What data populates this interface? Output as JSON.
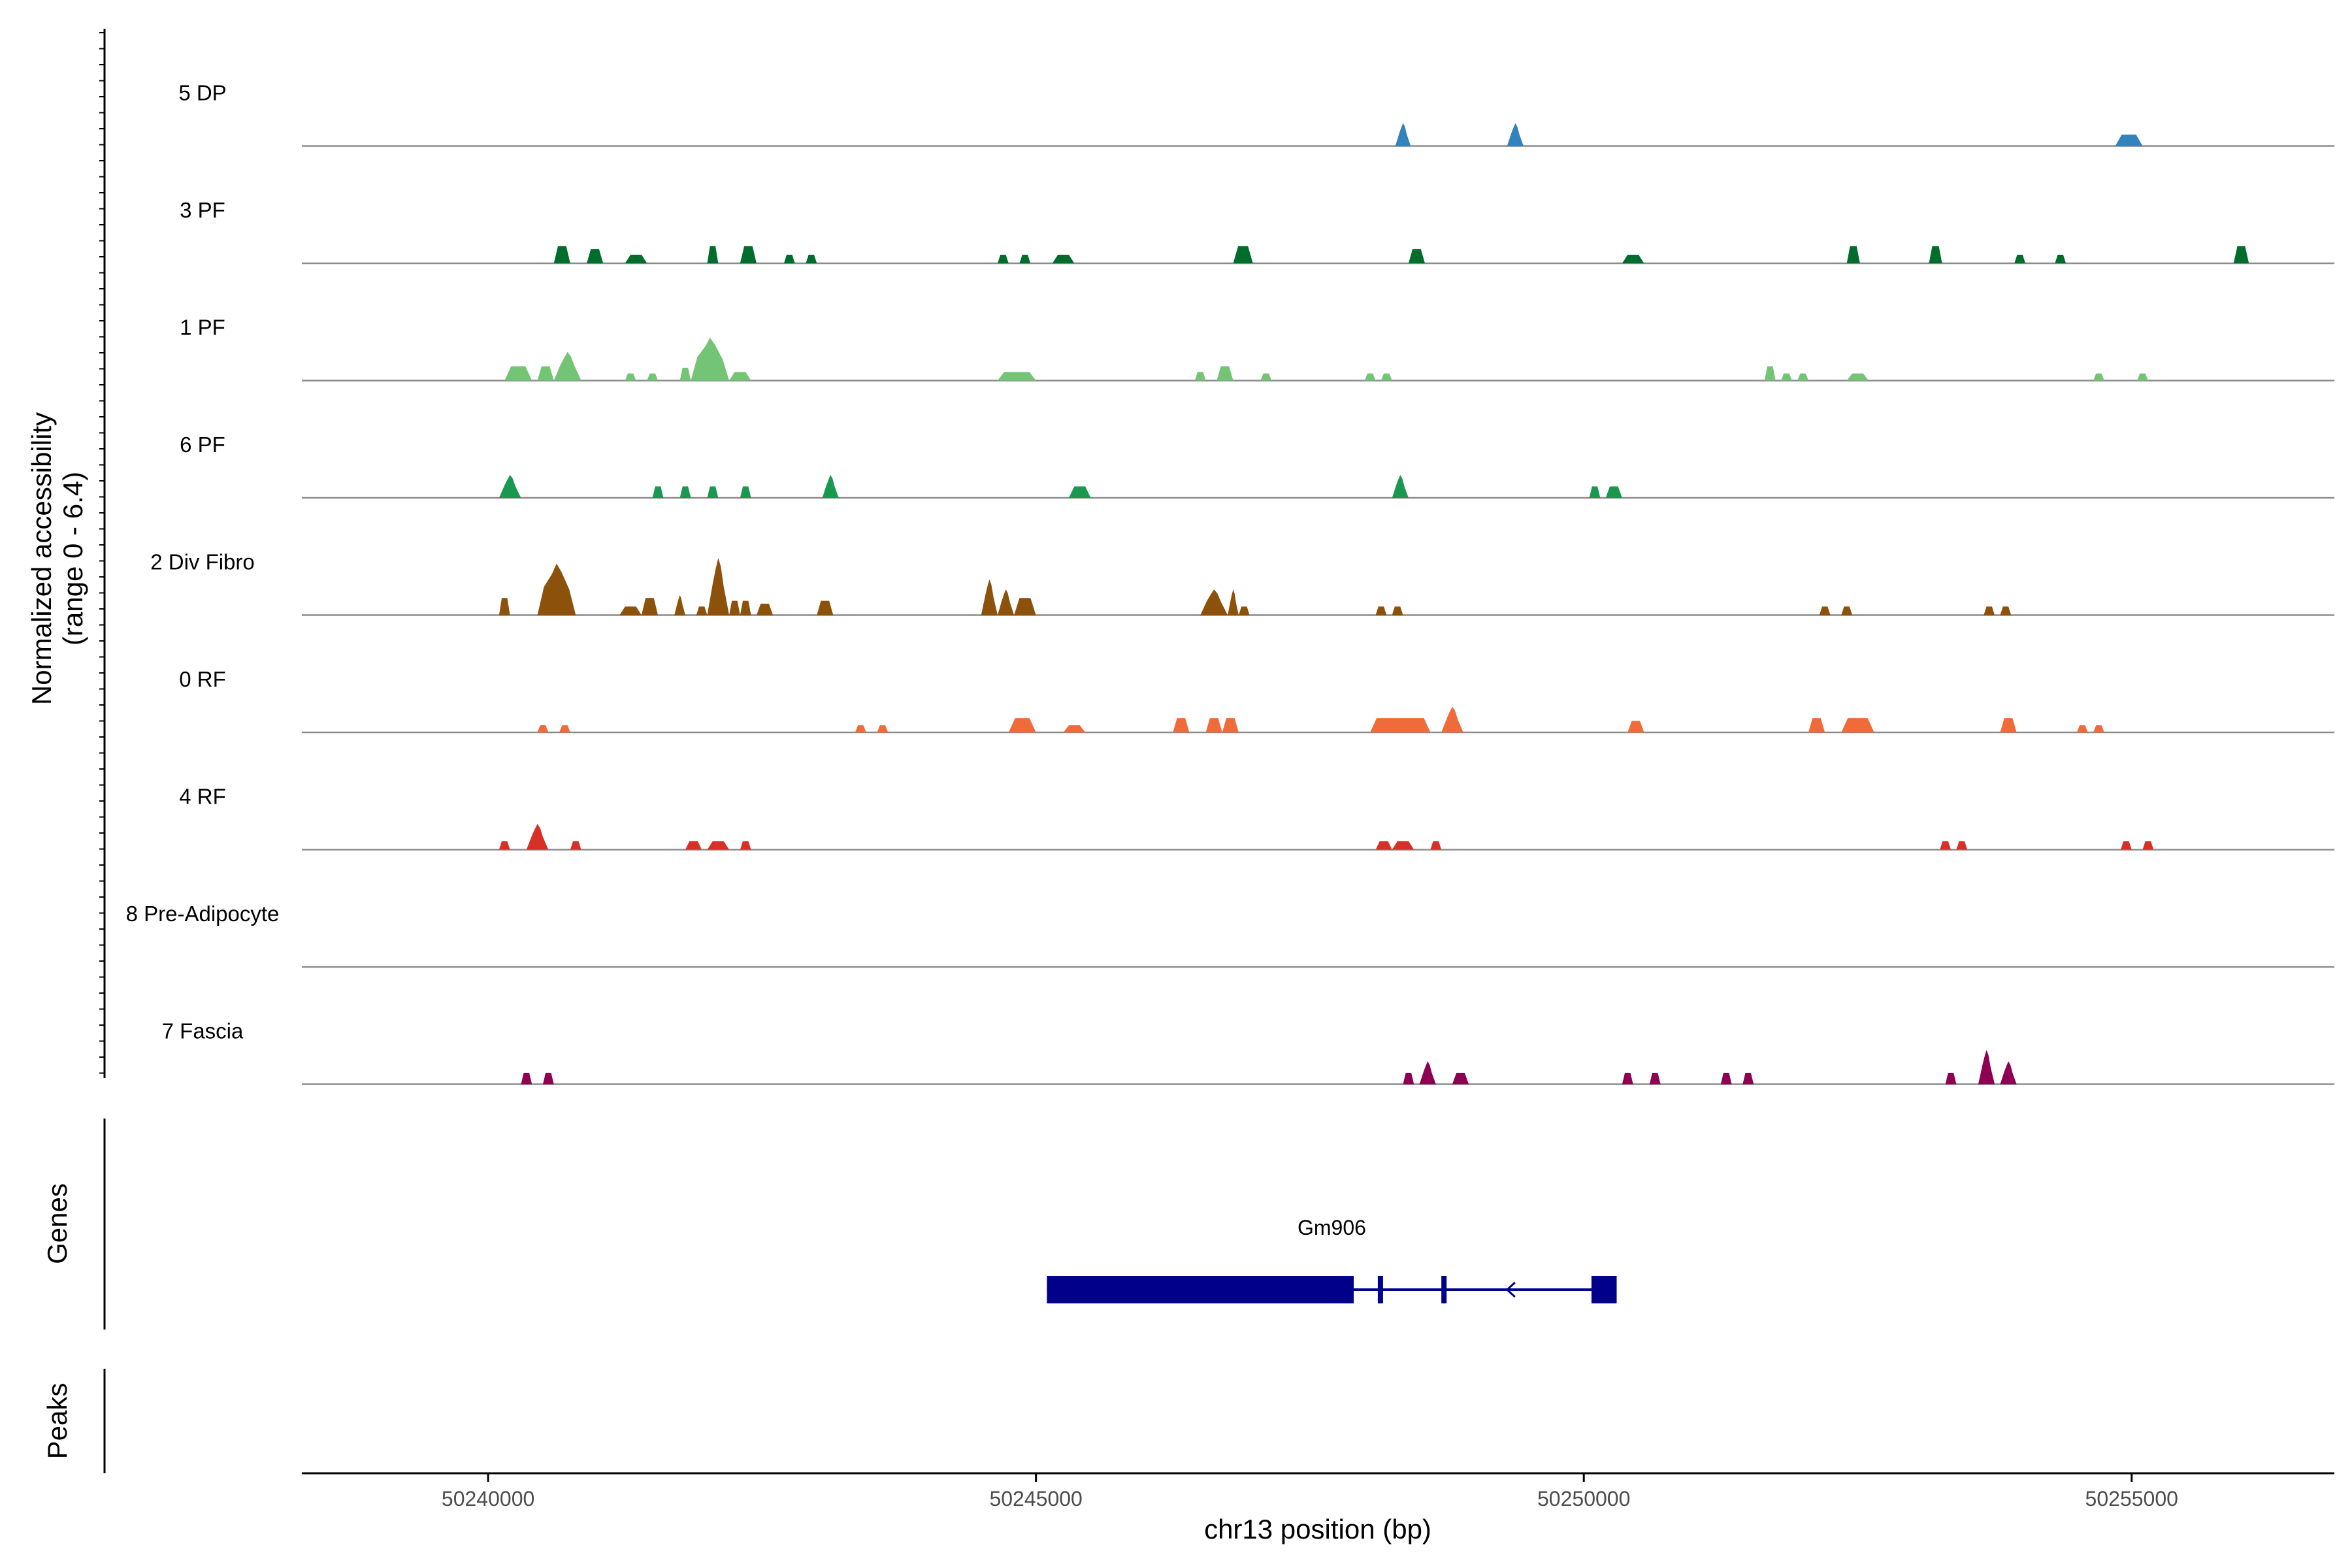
{
  "chart_data": {
    "type": "coverage-tracks",
    "chromosome": "chr13",
    "xlabel": "chr13 position (bp)",
    "ylabel": "Normalized accessibility",
    "ylabel_range": "(range 0 - 6.4)",
    "y_range": [
      0,
      6.4
    ],
    "x_range": [
      50238300,
      50256850
    ],
    "x_ticks": [
      50240000,
      50245000,
      50250000,
      50255000
    ],
    "x_tick_labels": [
      "50240000",
      "50245000",
      "50250000",
      "50255000"
    ],
    "panel_labels": {
      "genes": "Genes",
      "peaks": "Peaks"
    },
    "tracks": [
      {
        "name": "5 DP",
        "color": "#3182BD",
        "peaks": [
          {
            "s": 50248280,
            "e": 50248420,
            "h": 1.6
          },
          {
            "s": 50249300,
            "e": 50249450,
            "h": 1.6
          },
          {
            "s": 50254850,
            "e": 50255100,
            "h": 0.8
          }
        ]
      },
      {
        "name": "3 PF",
        "color": "#006D2C",
        "peaks": [
          {
            "s": 50240600,
            "e": 50240750,
            "h": 1.2
          },
          {
            "s": 50240900,
            "e": 50241050,
            "h": 1.0
          },
          {
            "s": 50241250,
            "e": 50241450,
            "h": 0.6
          },
          {
            "s": 50242000,
            "e": 50242100,
            "h": 1.2
          },
          {
            "s": 50242300,
            "e": 50242450,
            "h": 1.2
          },
          {
            "s": 50242700,
            "e": 50242800,
            "h": 0.6
          },
          {
            "s": 50242900,
            "e": 50243000,
            "h": 0.6
          },
          {
            "s": 50244650,
            "e": 50244750,
            "h": 0.6
          },
          {
            "s": 50244850,
            "e": 50244950,
            "h": 0.6
          },
          {
            "s": 50245150,
            "e": 50245350,
            "h": 0.6
          },
          {
            "s": 50246800,
            "e": 50246980,
            "h": 1.2
          },
          {
            "s": 50248400,
            "e": 50248550,
            "h": 1.0
          },
          {
            "s": 50250350,
            "e": 50250550,
            "h": 0.6
          },
          {
            "s": 50252400,
            "e": 50252520,
            "h": 1.2
          },
          {
            "s": 50253150,
            "e": 50253270,
            "h": 1.2
          },
          {
            "s": 50253930,
            "e": 50254030,
            "h": 0.6
          },
          {
            "s": 50254300,
            "e": 50254400,
            "h": 0.6
          },
          {
            "s": 50255930,
            "e": 50256070,
            "h": 1.2
          }
        ]
      },
      {
        "name": "1 PF",
        "color": "#74C476",
        "peaks": [
          {
            "s": 50240150,
            "e": 50240400,
            "h": 1.0
          },
          {
            "s": 50240450,
            "e": 50240600,
            "h": 1.0
          },
          {
            "s": 50240600,
            "e": 50240850,
            "h": 2.0
          },
          {
            "s": 50241250,
            "e": 50241350,
            "h": 0.5
          },
          {
            "s": 50241450,
            "e": 50241550,
            "h": 0.5
          },
          {
            "s": 50241750,
            "e": 50241850,
            "h": 0.9
          },
          {
            "s": 50241850,
            "e": 50242200,
            "h": 3.0
          },
          {
            "s": 50242200,
            "e": 50242400,
            "h": 0.6
          },
          {
            "s": 50244650,
            "e": 50245000,
            "h": 0.6
          },
          {
            "s": 50246450,
            "e": 50246550,
            "h": 0.6
          },
          {
            "s": 50246650,
            "e": 50246800,
            "h": 1.0
          },
          {
            "s": 50247050,
            "e": 50247150,
            "h": 0.5
          },
          {
            "s": 50248000,
            "e": 50248100,
            "h": 0.5
          },
          {
            "s": 50248150,
            "e": 50248250,
            "h": 0.5
          },
          {
            "s": 50251650,
            "e": 50251750,
            "h": 1.0
          },
          {
            "s": 50251800,
            "e": 50251900,
            "h": 0.5
          },
          {
            "s": 50251950,
            "e": 50252050,
            "h": 0.5
          },
          {
            "s": 50252400,
            "e": 50252600,
            "h": 0.5
          },
          {
            "s": 50254650,
            "e": 50254750,
            "h": 0.5
          },
          {
            "s": 50255050,
            "e": 50255150,
            "h": 0.5
          }
        ]
      },
      {
        "name": "6 PF",
        "color": "#1A9850",
        "peaks": [
          {
            "s": 50240100,
            "e": 50240300,
            "h": 1.6
          },
          {
            "s": 50241500,
            "e": 50241600,
            "h": 0.8
          },
          {
            "s": 50241750,
            "e": 50241850,
            "h": 0.8
          },
          {
            "s": 50242000,
            "e": 50242100,
            "h": 0.8
          },
          {
            "s": 50242300,
            "e": 50242400,
            "h": 0.8
          },
          {
            "s": 50243050,
            "e": 50243200,
            "h": 1.6
          },
          {
            "s": 50245300,
            "e": 50245500,
            "h": 0.8
          },
          {
            "s": 50248250,
            "e": 50248400,
            "h": 1.6
          },
          {
            "s": 50250050,
            "e": 50250150,
            "h": 0.8
          },
          {
            "s": 50250200,
            "e": 50250350,
            "h": 0.8
          }
        ]
      },
      {
        "name": "2 Div Fibro",
        "color": "#8C510A",
        "peaks": [
          {
            "s": 50240100,
            "e": 50240200,
            "h": 1.2
          },
          {
            "s": 50240450,
            "e": 50240800,
            "h": 3.6
          },
          {
            "s": 50241200,
            "e": 50241400,
            "h": 0.6
          },
          {
            "s": 50241400,
            "e": 50241550,
            "h": 1.2
          },
          {
            "s": 50241700,
            "e": 50241800,
            "h": 1.4
          },
          {
            "s": 50241900,
            "e": 50242000,
            "h": 0.6
          },
          {
            "s": 50242000,
            "e": 50242200,
            "h": 4.0
          },
          {
            "s": 50242200,
            "e": 50242300,
            "h": 1.0
          },
          {
            "s": 50242300,
            "e": 50242400,
            "h": 1.0
          },
          {
            "s": 50242450,
            "e": 50242600,
            "h": 0.8
          },
          {
            "s": 50243000,
            "e": 50243150,
            "h": 1.0
          },
          {
            "s": 50244500,
            "e": 50244650,
            "h": 2.5
          },
          {
            "s": 50244650,
            "e": 50244800,
            "h": 1.8
          },
          {
            "s": 50244800,
            "e": 50245000,
            "h": 1.2
          },
          {
            "s": 50246500,
            "e": 50246750,
            "h": 1.8
          },
          {
            "s": 50246750,
            "e": 50246850,
            "h": 1.8
          },
          {
            "s": 50246850,
            "e": 50246950,
            "h": 0.6
          },
          {
            "s": 50248100,
            "e": 50248200,
            "h": 0.6
          },
          {
            "s": 50248250,
            "e": 50248350,
            "h": 0.6
          },
          {
            "s": 50252150,
            "e": 50252250,
            "h": 0.6
          },
          {
            "s": 50252350,
            "e": 50252450,
            "h": 0.6
          },
          {
            "s": 50253650,
            "e": 50253750,
            "h": 0.6
          },
          {
            "s": 50253800,
            "e": 50253900,
            "h": 0.6
          }
        ]
      },
      {
        "name": "0 RF",
        "color": "#EF6B3A",
        "peaks": [
          {
            "s": 50240450,
            "e": 50240550,
            "h": 0.5
          },
          {
            "s": 50240650,
            "e": 50240750,
            "h": 0.5
          },
          {
            "s": 50243350,
            "e": 50243450,
            "h": 0.5
          },
          {
            "s": 50243550,
            "e": 50243650,
            "h": 0.5
          },
          {
            "s": 50244750,
            "e": 50245000,
            "h": 1.0
          },
          {
            "s": 50245250,
            "e": 50245450,
            "h": 0.5
          },
          {
            "s": 50246250,
            "e": 50246400,
            "h": 1.0
          },
          {
            "s": 50246550,
            "e": 50246700,
            "h": 1.0
          },
          {
            "s": 50246700,
            "e": 50246850,
            "h": 1.0
          },
          {
            "s": 50248050,
            "e": 50248600,
            "h": 1.0
          },
          {
            "s": 50248700,
            "e": 50248900,
            "h": 1.8
          },
          {
            "s": 50250400,
            "e": 50250550,
            "h": 0.8
          },
          {
            "s": 50252050,
            "e": 50252200,
            "h": 1.0
          },
          {
            "s": 50252350,
            "e": 50252650,
            "h": 1.0
          },
          {
            "s": 50253800,
            "e": 50253950,
            "h": 1.0
          },
          {
            "s": 50254500,
            "e": 50254600,
            "h": 0.5
          },
          {
            "s": 50254650,
            "e": 50254750,
            "h": 0.5
          }
        ]
      },
      {
        "name": "4 RF",
        "color": "#D73027",
        "peaks": [
          {
            "s": 50240100,
            "e": 50240200,
            "h": 0.6
          },
          {
            "s": 50240350,
            "e": 50240550,
            "h": 1.8
          },
          {
            "s": 50240750,
            "e": 50240850,
            "h": 0.6
          },
          {
            "s": 50241800,
            "e": 50241950,
            "h": 0.6
          },
          {
            "s": 50242000,
            "e": 50242200,
            "h": 0.6
          },
          {
            "s": 50242300,
            "e": 50242400,
            "h": 0.6
          },
          {
            "s": 50248100,
            "e": 50248250,
            "h": 0.6
          },
          {
            "s": 50248250,
            "e": 50248450,
            "h": 0.6
          },
          {
            "s": 50248600,
            "e": 50248700,
            "h": 0.6
          },
          {
            "s": 50253250,
            "e": 50253350,
            "h": 0.6
          },
          {
            "s": 50253400,
            "e": 50253500,
            "h": 0.6
          },
          {
            "s": 50254900,
            "e": 50255000,
            "h": 0.6
          },
          {
            "s": 50255100,
            "e": 50255200,
            "h": 0.6
          }
        ]
      },
      {
        "name": "8 Pre-Adipocyte",
        "color": "#444444",
        "peaks": []
      },
      {
        "name": "7 Fascia",
        "color": "#8E0152",
        "peaks": [
          {
            "s": 50240300,
            "e": 50240400,
            "h": 0.8
          },
          {
            "s": 50240500,
            "e": 50240600,
            "h": 0.8
          },
          {
            "s": 50248350,
            "e": 50248450,
            "h": 0.8
          },
          {
            "s": 50248500,
            "e": 50248650,
            "h": 1.6
          },
          {
            "s": 50248800,
            "e": 50248950,
            "h": 0.8
          },
          {
            "s": 50250350,
            "e": 50250450,
            "h": 0.8
          },
          {
            "s": 50250600,
            "e": 50250700,
            "h": 0.8
          },
          {
            "s": 50251250,
            "e": 50251350,
            "h": 0.8
          },
          {
            "s": 50251450,
            "e": 50251550,
            "h": 0.8
          },
          {
            "s": 50253300,
            "e": 50253400,
            "h": 0.8
          },
          {
            "s": 50253600,
            "e": 50253750,
            "h": 2.4
          },
          {
            "s": 50253800,
            "e": 50253950,
            "h": 1.6
          }
        ]
      }
    ],
    "genes": [
      {
        "name": "Gm906",
        "strand": "-",
        "color": "#00008B",
        "start": 50245100,
        "end": 50250300,
        "exons": [
          [
            50245100,
            50247900
          ],
          [
            50248120,
            50248160
          ],
          [
            50248700,
            50248740
          ],
          [
            50250070,
            50250300
          ]
        ]
      }
    ]
  }
}
